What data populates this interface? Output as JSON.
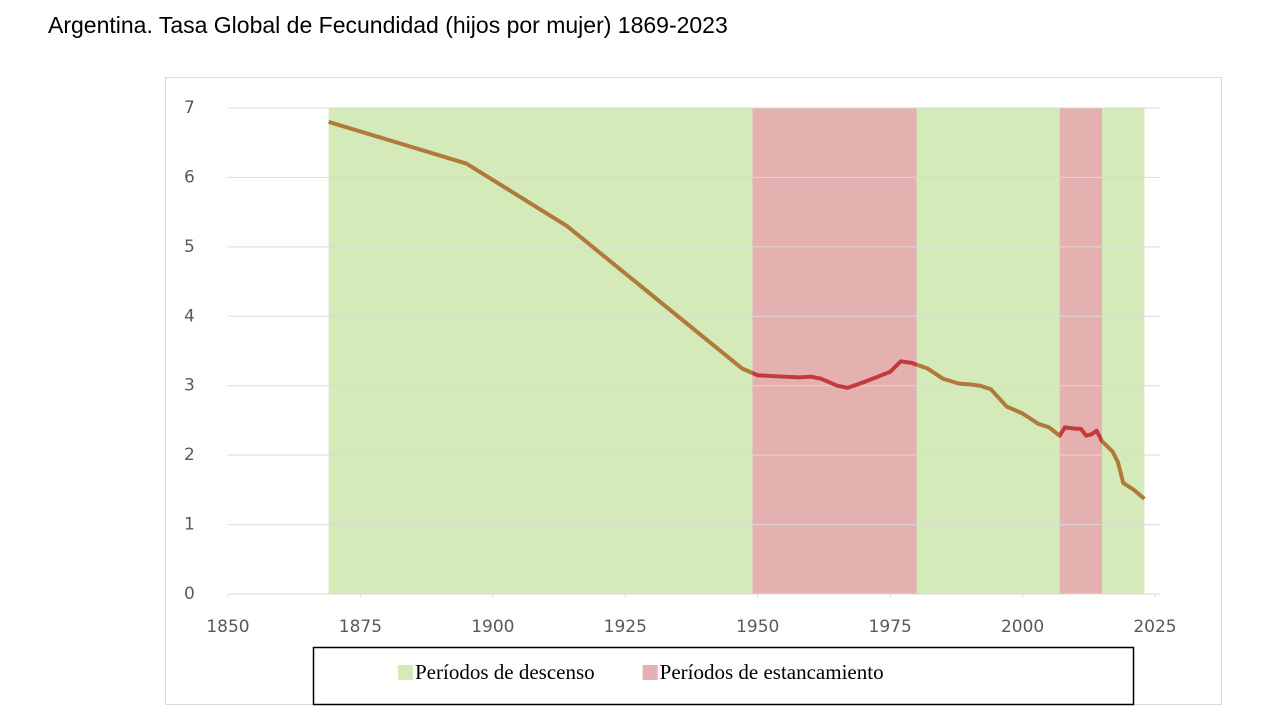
{
  "chart_data": {
    "type": "line",
    "title": "Argentina. Tasa Global de Fecundidad (hijos por mujer) 1869-2023",
    "x": [
      1869,
      1895,
      1914,
      1947,
      1950,
      1955,
      1958,
      1960,
      1962,
      1965,
      1967,
      1970,
      1975,
      1977,
      1979,
      1982,
      1985,
      1988,
      1990,
      1992,
      1994,
      1997,
      2000,
      2003,
      2005,
      2007,
      2008,
      2010,
      2011,
      2012,
      2013,
      2014,
      2015,
      2017,
      2018,
      2019,
      2020,
      2021,
      2023
    ],
    "values": [
      6.8,
      6.2,
      5.3,
      3.25,
      3.15,
      3.13,
      3.12,
      3.13,
      3.1,
      3.0,
      2.97,
      3.05,
      3.2,
      3.35,
      3.33,
      3.25,
      3.1,
      3.03,
      3.02,
      3.0,
      2.95,
      2.7,
      2.6,
      2.45,
      2.4,
      2.28,
      2.4,
      2.38,
      2.38,
      2.28,
      2.3,
      2.35,
      2.2,
      2.05,
      1.9,
      1.6,
      1.55,
      1.5,
      1.37
    ],
    "bands": [
      {
        "name": "Períodos de descenso",
        "color": "#d5eab9",
        "line_color": "#b07a3a",
        "ranges": [
          [
            1869,
            1949
          ],
          [
            1980,
            2007
          ],
          [
            2015,
            2023
          ]
        ]
      },
      {
        "name": "Períodos de estancamiento",
        "color": "#e4b0b0",
        "line_color": "#c23a3c",
        "ranges": [
          [
            1949,
            1980
          ],
          [
            2007,
            2015
          ]
        ]
      }
    ],
    "xlim": [
      1850,
      2025
    ],
    "xticks": [
      1850,
      1875,
      1900,
      1925,
      1950,
      1975,
      2000,
      2025
    ],
    "ylim": [
      0,
      7
    ],
    "yticks": [
      0,
      1,
      2,
      3,
      4,
      5,
      6,
      7
    ],
    "grid": true
  }
}
